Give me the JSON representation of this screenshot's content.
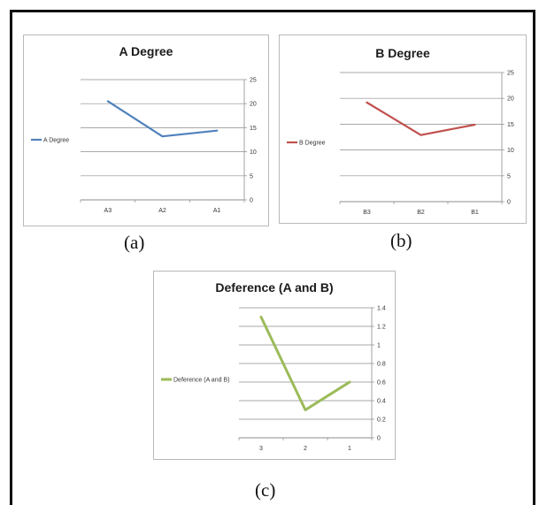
{
  "captions": {
    "a": "(a)",
    "b": "(b)",
    "c": "(c)"
  },
  "chart_data": [
    {
      "type": "line",
      "title": "A Degree",
      "categories": [
        "A3",
        "A2",
        "A1"
      ],
      "series": [
        {
          "name": "A Degree",
          "values": [
            20.5,
            13.2,
            14.4
          ],
          "color": "#4f81bd"
        }
      ],
      "ylim": [
        0,
        25
      ],
      "yticks": [
        0,
        5,
        10,
        15,
        20,
        25
      ],
      "ytick_labels": [
        "0",
        "5",
        "10",
        "15",
        "20",
        "25"
      ],
      "y_axis_side": "right",
      "legend": "left",
      "grid": true
    },
    {
      "type": "line",
      "title": "B Degree",
      "categories": [
        "B3",
        "B2",
        "B1"
      ],
      "series": [
        {
          "name": "B Degree",
          "values": [
            19.2,
            12.9,
            14.9
          ],
          "color": "#c0504d"
        }
      ],
      "ylim": [
        0,
        25
      ],
      "yticks": [
        0,
        5,
        10,
        15,
        20,
        25
      ],
      "ytick_labels": [
        "0",
        "5",
        "10",
        "15",
        "20",
        "25"
      ],
      "y_axis_side": "right",
      "legend": "left",
      "grid": true
    },
    {
      "type": "line",
      "title": "Deference (A and B)",
      "categories": [
        "3",
        "2",
        "1"
      ],
      "series": [
        {
          "name": "Deference (A and B)",
          "values": [
            1.3,
            0.3,
            0.6
          ],
          "color": "#9bbb59"
        }
      ],
      "ylim": [
        0,
        1.4
      ],
      "yticks": [
        0,
        0.2,
        0.4,
        0.6,
        0.8,
        1,
        1.2,
        1.4
      ],
      "ytick_labels": [
        "0",
        "0.2",
        "0.4",
        "0.6",
        "0.8",
        "1",
        "1.2",
        "1.4"
      ],
      "y_axis_side": "right",
      "legend": "left",
      "grid": true
    }
  ]
}
